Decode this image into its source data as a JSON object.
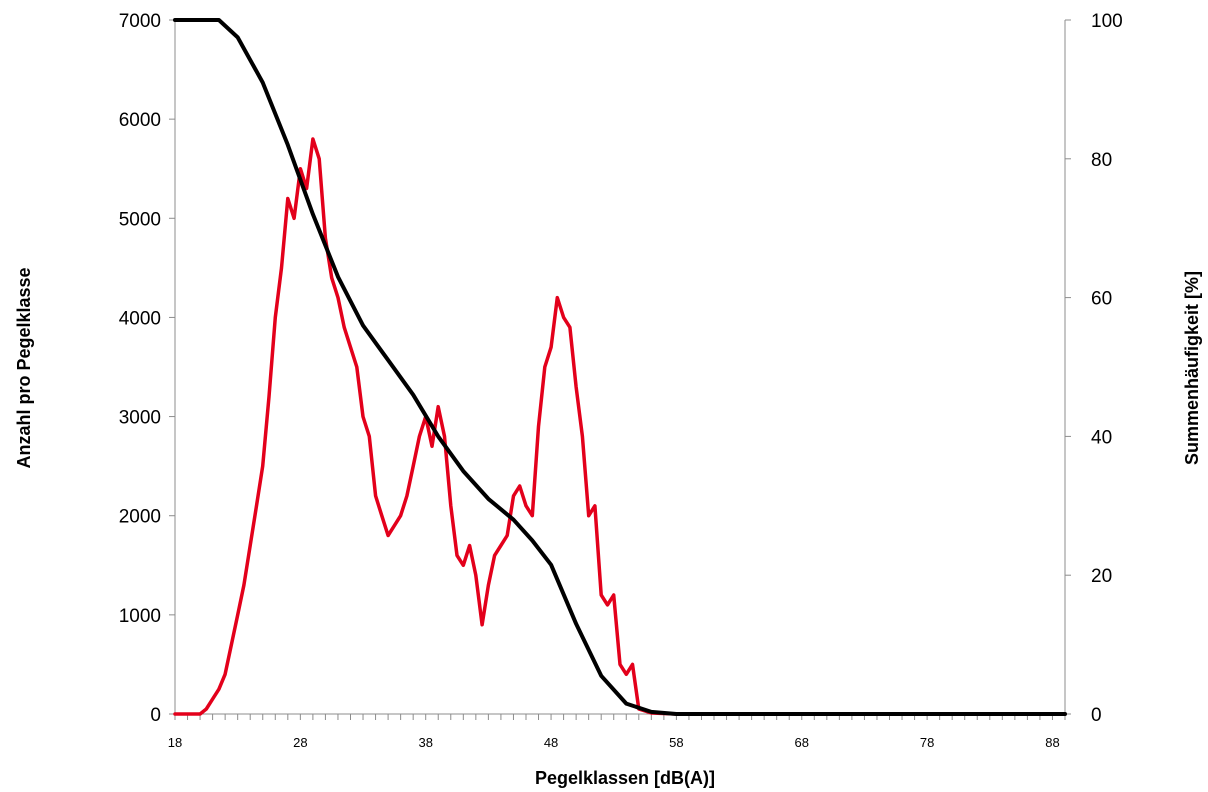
{
  "chart_data": {
    "type": "line",
    "xlabel": "Pegelklassen [dB(A)]",
    "ylabel_left": "Anzahl pro Pegelklasse",
    "ylabel_right": "Summenhäufigkeit [%]",
    "xlim": [
      18,
      89
    ],
    "ylim_left": [
      0,
      7000
    ],
    "ylim_right": [
      0,
      100
    ],
    "x_ticks": [
      18,
      28,
      38,
      48,
      58,
      68,
      78,
      88
    ],
    "y_ticks_left": [
      0,
      1000,
      2000,
      3000,
      4000,
      5000,
      6000,
      7000
    ],
    "y_ticks_right": [
      0,
      20,
      40,
      60,
      80,
      100
    ],
    "minor_x_tick_step": 1,
    "grid": false,
    "series": [
      {
        "axis": "left",
        "color": "#e3001b",
        "points": [
          [
            18,
            0
          ],
          [
            20,
            0
          ],
          [
            20.5,
            50
          ],
          [
            21,
            150
          ],
          [
            21.5,
            250
          ],
          [
            22,
            400
          ],
          [
            22.5,
            700
          ],
          [
            23,
            1000
          ],
          [
            23.5,
            1300
          ],
          [
            24,
            1700
          ],
          [
            24.5,
            2100
          ],
          [
            25,
            2500
          ],
          [
            25.5,
            3200
          ],
          [
            26,
            4000
          ],
          [
            26.5,
            4500
          ],
          [
            27,
            5200
          ],
          [
            27.5,
            5000
          ],
          [
            28,
            5500
          ],
          [
            28.5,
            5300
          ],
          [
            29,
            5800
          ],
          [
            29.5,
            5600
          ],
          [
            30,
            4800
          ],
          [
            30.5,
            4400
          ],
          [
            31,
            4200
          ],
          [
            31.5,
            3900
          ],
          [
            32,
            3700
          ],
          [
            32.5,
            3500
          ],
          [
            33,
            3000
          ],
          [
            33.5,
            2800
          ],
          [
            34,
            2200
          ],
          [
            34.5,
            2000
          ],
          [
            35,
            1800
          ],
          [
            35.5,
            1900
          ],
          [
            36,
            2000
          ],
          [
            36.5,
            2200
          ],
          [
            37,
            2500
          ],
          [
            37.5,
            2800
          ],
          [
            38,
            3000
          ],
          [
            38.5,
            2700
          ],
          [
            39,
            3100
          ],
          [
            39.5,
            2800
          ],
          [
            40,
            2100
          ],
          [
            40.5,
            1600
          ],
          [
            41,
            1500
          ],
          [
            41.5,
            1700
          ],
          [
            42,
            1400
          ],
          [
            42.5,
            900
          ],
          [
            43,
            1300
          ],
          [
            43.5,
            1600
          ],
          [
            44,
            1700
          ],
          [
            44.5,
            1800
          ],
          [
            45,
            2200
          ],
          [
            45.5,
            2300
          ],
          [
            46,
            2100
          ],
          [
            46.5,
            2000
          ],
          [
            47,
            2900
          ],
          [
            47.5,
            3500
          ],
          [
            48,
            3700
          ],
          [
            48.5,
            4200
          ],
          [
            49,
            4000
          ],
          [
            49.5,
            3900
          ],
          [
            50,
            3300
          ],
          [
            50.5,
            2800
          ],
          [
            51,
            2000
          ],
          [
            51.5,
            2100
          ],
          [
            52,
            1200
          ],
          [
            52.5,
            1100
          ],
          [
            53,
            1200
          ],
          [
            53.5,
            500
          ],
          [
            54,
            400
          ],
          [
            54.5,
            500
          ],
          [
            55,
            50
          ],
          [
            56,
            10
          ],
          [
            58,
            0
          ],
          [
            89,
            0
          ]
        ]
      },
      {
        "axis": "right",
        "color": "#000000",
        "points": [
          [
            18,
            100
          ],
          [
            21.5,
            100
          ],
          [
            23,
            97.5
          ],
          [
            25,
            91
          ],
          [
            27,
            82
          ],
          [
            29,
            72
          ],
          [
            31,
            63
          ],
          [
            33,
            56
          ],
          [
            35,
            51
          ],
          [
            37,
            46
          ],
          [
            39,
            40
          ],
          [
            41,
            35
          ],
          [
            43,
            31
          ],
          [
            45,
            28
          ],
          [
            46.5,
            25
          ],
          [
            48,
            21.5
          ],
          [
            50,
            13
          ],
          [
            52,
            5.5
          ],
          [
            54,
            1.5
          ],
          [
            56,
            0.3
          ],
          [
            58,
            0
          ],
          [
            89,
            0
          ]
        ]
      }
    ]
  }
}
